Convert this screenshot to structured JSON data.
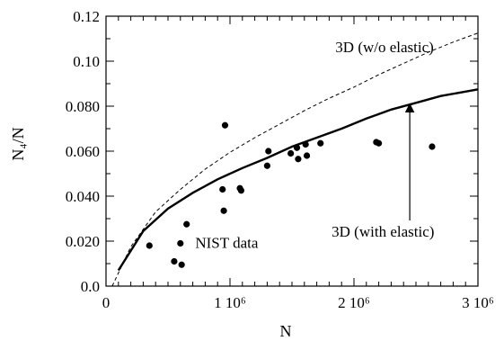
{
  "chart_data": {
    "type": "scatter",
    "title": "",
    "xlabel": "N",
    "ylabel": "N₄/N",
    "xlim": [
      0,
      3000000
    ],
    "ylim": [
      0,
      0.12
    ],
    "x_ticks": [
      {
        "value": 0,
        "label": "0"
      },
      {
        "value": 1000000,
        "label": "1 10⁶"
      },
      {
        "value": 2000000,
        "label": "2 10⁶"
      },
      {
        "value": 3000000,
        "label": "3 10⁶"
      }
    ],
    "y_ticks": [
      {
        "value": 0,
        "label": "0.0"
      },
      {
        "value": 0.02,
        "label": "0.020"
      },
      {
        "value": 0.04,
        "label": "0.040"
      },
      {
        "value": 0.06,
        "label": "0.060"
      },
      {
        "value": 0.08,
        "label": "0.080"
      },
      {
        "value": 0.1,
        "label": "0.10"
      },
      {
        "value": 0.12,
        "label": "0.12"
      }
    ],
    "series": [
      {
        "name": "NIST data",
        "kind": "points",
        "x": [
          350000,
          550000,
          600000,
          610000,
          650000,
          940000,
          950000,
          960000,
          1080000,
          1090000,
          1300000,
          1310000,
          1490000,
          1540000,
          1550000,
          1610000,
          1620000,
          1730000,
          2180000,
          2200000,
          2630000
        ],
        "y": [
          0.018,
          0.011,
          0.019,
          0.0095,
          0.0275,
          0.043,
          0.0335,
          0.0715,
          0.0435,
          0.0425,
          0.0535,
          0.06,
          0.059,
          0.0615,
          0.0565,
          0.063,
          0.058,
          0.0635,
          0.064,
          0.0635,
          0.062
        ]
      },
      {
        "name": "3D (with elastic)",
        "kind": "line",
        "dash": "solid",
        "x": [
          100000,
          300000,
          500000,
          700000,
          900000,
          1100000,
          1300000,
          1500000,
          1700000,
          1900000,
          2100000,
          2300000,
          2500000,
          2700000,
          2900000,
          3000000
        ],
        "y": [
          0.007,
          0.0245,
          0.0345,
          0.0415,
          0.0475,
          0.0525,
          0.057,
          0.062,
          0.066,
          0.07,
          0.0745,
          0.0785,
          0.0815,
          0.0845,
          0.0865,
          0.0875
        ]
      },
      {
        "name": "3D (w/o elastic)",
        "kind": "line",
        "dash": "dashed",
        "x": [
          50000,
          200000,
          400000,
          600000,
          800000,
          1000000,
          1200000,
          1400000,
          1600000,
          1800000,
          2000000,
          2200000,
          2400000,
          2600000,
          2800000,
          3000000
        ],
        "y": [
          0.0,
          0.0175,
          0.033,
          0.043,
          0.052,
          0.0595,
          0.066,
          0.072,
          0.078,
          0.0835,
          0.0885,
          0.094,
          0.099,
          0.104,
          0.1085,
          0.1125
        ]
      }
    ],
    "annotations": [
      {
        "text": "3D (w/o elastic)",
        "x": 1850000,
        "y": 0.104
      },
      {
        "text": "3D (with elastic)",
        "x": 1820000,
        "y": 0.022,
        "arrow_to": [
          2450000,
          0.081
        ]
      },
      {
        "text": "NIST data",
        "x": 720000,
        "y": 0.017
      }
    ]
  }
}
